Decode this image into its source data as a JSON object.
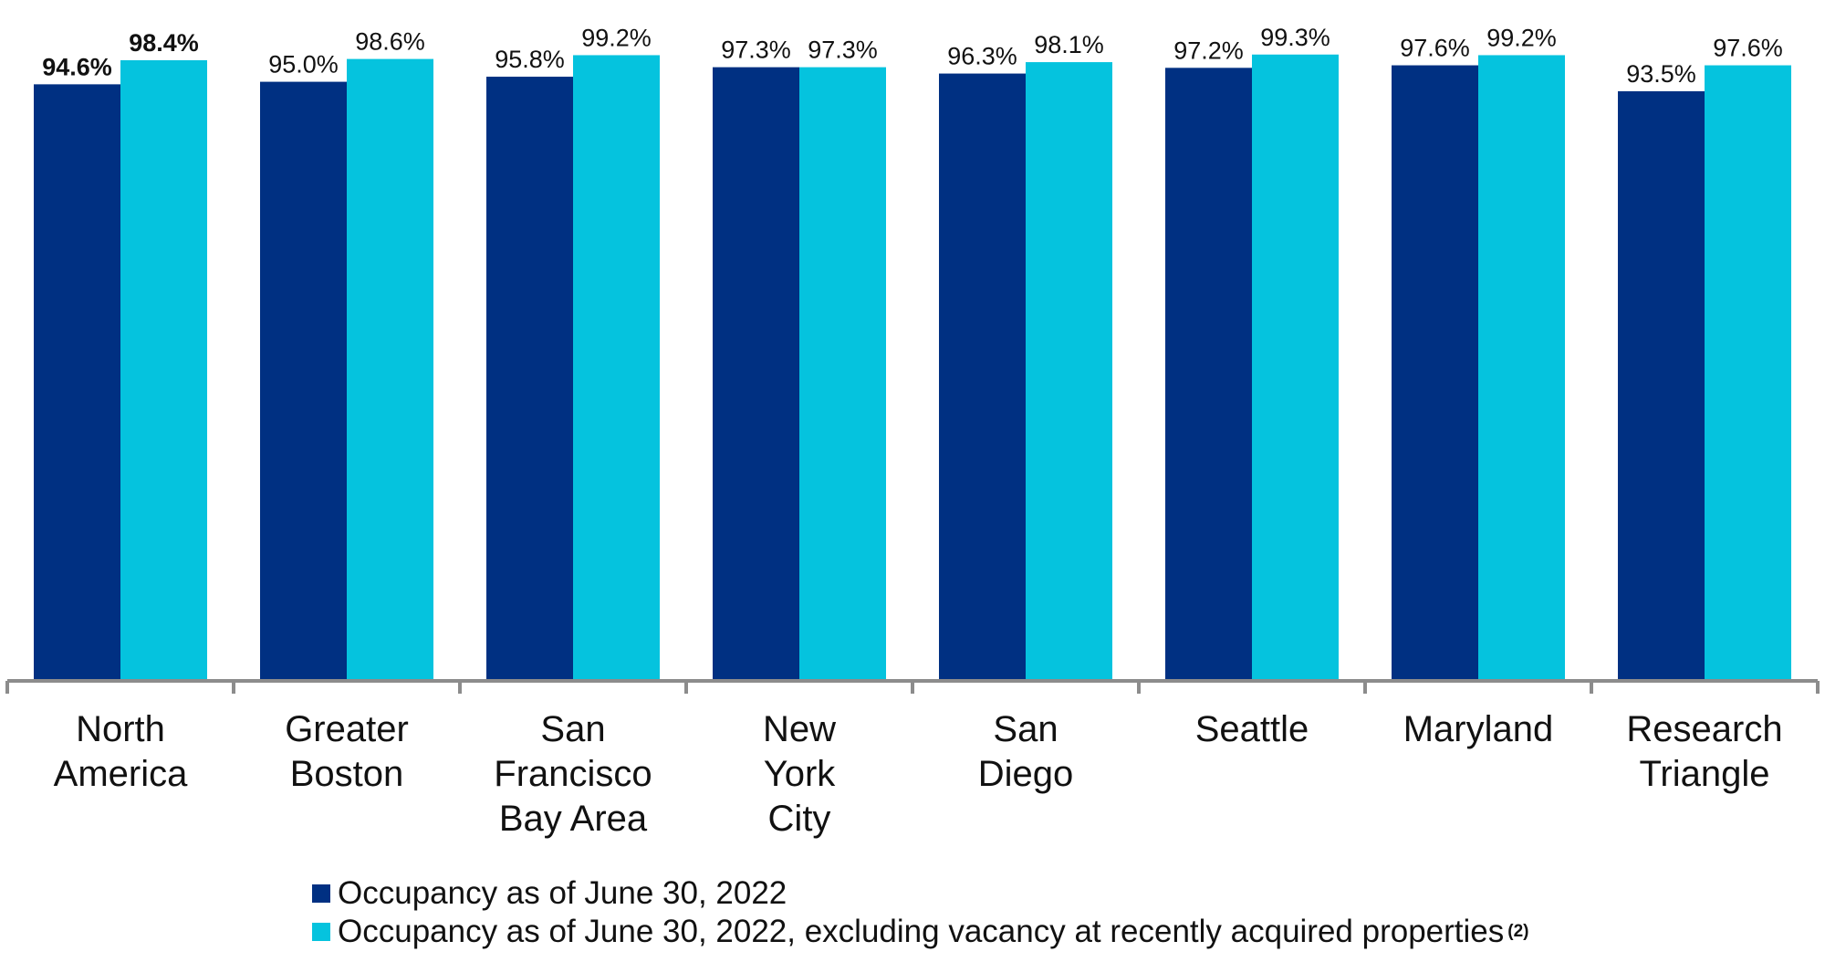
{
  "colors": {
    "series1": "#003082",
    "series2": "#05C3DE",
    "axis": "#8C8C8C",
    "text": "#111111"
  },
  "chart_data": {
    "type": "bar",
    "title": "",
    "xlabel": "",
    "ylabel": "",
    "ylim": [
      0,
      100
    ],
    "grid": false,
    "legend_position": "bottom",
    "categories": [
      [
        "North",
        "America"
      ],
      [
        "Greater",
        "Boston"
      ],
      [
        "San",
        "Francisco",
        "Bay Area"
      ],
      [
        "New",
        "York",
        "City"
      ],
      [
        "San",
        "Diego"
      ],
      [
        "Seattle"
      ],
      [
        "Maryland"
      ],
      [
        "Research",
        "Triangle"
      ]
    ],
    "series": [
      {
        "name": "Occupancy as of June 30, 2022",
        "values": [
          94.6,
          95.0,
          95.8,
          97.3,
          96.3,
          97.2,
          97.6,
          93.5
        ],
        "labels": [
          "94.6%",
          "95.0%",
          "95.8%",
          "97.3%",
          "96.3%",
          "97.2%",
          "97.6%",
          "93.5%"
        ]
      },
      {
        "name": "Occupancy as of June 30, 2022, excluding vacancy at recently acquired properties",
        "footnote": "(2)",
        "values": [
          98.4,
          98.6,
          99.2,
          97.3,
          98.1,
          99.3,
          99.2,
          97.6
        ],
        "labels": [
          "98.4%",
          "98.6%",
          "99.2%",
          "97.3%",
          "98.1%",
          "99.3%",
          "99.2%",
          "97.6%"
        ]
      }
    ],
    "bold_category_index": 0
  },
  "legend": {
    "items": [
      {
        "label": "Occupancy as of June 30, 2022",
        "footnote": ""
      },
      {
        "label": "Occupancy as of June 30, 2022, excluding vacancy at recently acquired properties",
        "footnote": "(2)"
      }
    ]
  }
}
